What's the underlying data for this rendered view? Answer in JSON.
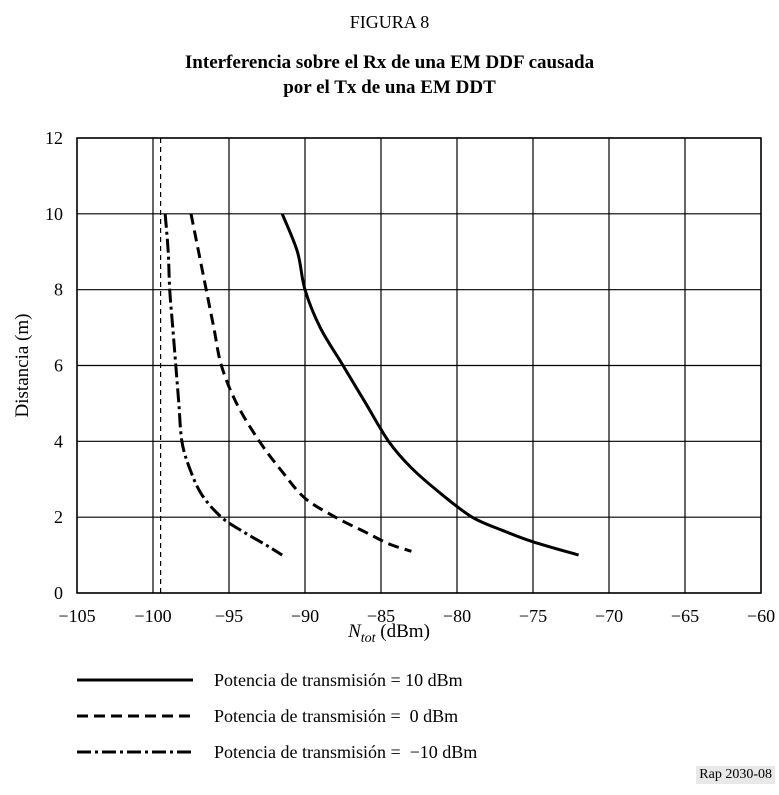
{
  "figure_label": "FIGURA 8",
  "title_lines": [
    "Interferencia sobre el Rx de una EM DDF causada",
    "por el Tx de una EM DDT"
  ],
  "source_tag": "Rap 2030-08",
  "chart_data": {
    "type": "line",
    "xlabel_main": "N",
    "xlabel_sub": "tot",
    "xlabel_unit": " (dBm)",
    "ylabel": "Distancia (m)",
    "xlim": [
      -105,
      -60
    ],
    "ylim": [
      0,
      12
    ],
    "x_ticks": [
      -105,
      -100,
      -95,
      -90,
      -85,
      -80,
      -75,
      -70,
      -65,
      -60
    ],
    "x_tick_labels": [
      "−105",
      "−100",
      "−95",
      "−90",
      "−85",
      "−80",
      "−75",
      "−70",
      "−65",
      "−60"
    ],
    "y_ticks": [
      0,
      2,
      4,
      6,
      8,
      10,
      12
    ],
    "y_tick_labels": [
      "0",
      "2",
      "4",
      "6",
      "8",
      "10",
      "12"
    ],
    "grid": true,
    "reference_line_x": -99.5,
    "series": [
      {
        "name": "Potencia de transmisión = 10 dBm",
        "style": "solid",
        "points": [
          [
            -91.5,
            10
          ],
          [
            -90.5,
            9
          ],
          [
            -90,
            8
          ],
          [
            -89,
            7
          ],
          [
            -87.5,
            6
          ],
          [
            -86,
            5
          ],
          [
            -84.5,
            4
          ],
          [
            -83,
            3.3
          ],
          [
            -81,
            2.6
          ],
          [
            -79,
            2
          ],
          [
            -77,
            1.65
          ],
          [
            -75,
            1.35
          ],
          [
            -72,
            1
          ]
        ]
      },
      {
        "name": "Potencia de transmisión =  0 dBm",
        "style": "dash",
        "points": [
          [
            -97.5,
            10
          ],
          [
            -97,
            9
          ],
          [
            -96.5,
            8
          ],
          [
            -96,
            7
          ],
          [
            -95.5,
            6
          ],
          [
            -94.5,
            5
          ],
          [
            -93,
            4
          ],
          [
            -91.5,
            3.2
          ],
          [
            -90,
            2.5
          ],
          [
            -88,
            2
          ],
          [
            -86,
            1.6
          ],
          [
            -84.5,
            1.3
          ],
          [
            -83,
            1.1
          ]
        ]
      },
      {
        "name": "Potencia de transmisión =  −10 dBm",
        "style": "dashdot",
        "points": [
          [
            -99.2,
            10
          ],
          [
            -99,
            9
          ],
          [
            -98.9,
            8
          ],
          [
            -98.7,
            7
          ],
          [
            -98.5,
            6
          ],
          [
            -98.3,
            5
          ],
          [
            -98.1,
            4
          ],
          [
            -97.6,
            3.3
          ],
          [
            -96.8,
            2.6
          ],
          [
            -95.5,
            2
          ],
          [
            -94,
            1.6
          ],
          [
            -92.5,
            1.25
          ],
          [
            -91.5,
            1
          ]
        ]
      }
    ],
    "legend_position": "bottom"
  }
}
